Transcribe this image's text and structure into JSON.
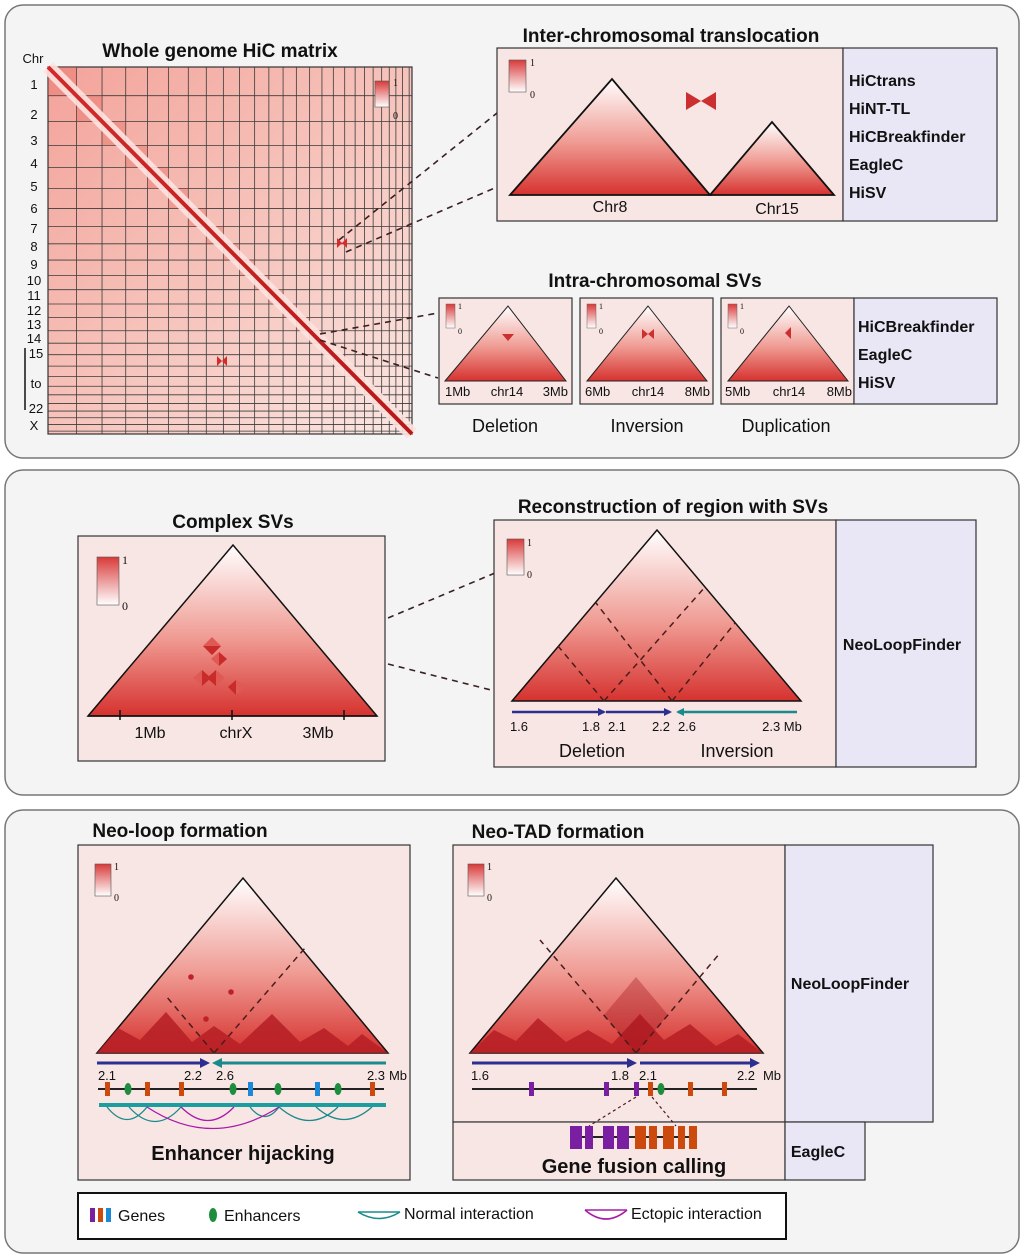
{
  "panel1": {
    "matrix_title": "Whole genome HiC matrix",
    "chr_label": "Chr",
    "chromosomes": [
      "1",
      "2",
      "3",
      "4",
      "5",
      "6",
      "7",
      "8",
      "9",
      "10",
      "11",
      "12",
      "13",
      "14",
      "15",
      "to",
      "22",
      "X"
    ],
    "scale_max": "1",
    "scale_min": "0",
    "trans_title": "Inter-chromosomal translocation",
    "trans_chr_a": "Chr8",
    "trans_chr_b": "Chr15",
    "trans_tools": [
      "HiCtrans",
      "HiNT-TL",
      "HiCBreakfinder",
      "EagleC",
      "HiSV"
    ],
    "intra_title": "Intra-chromosomal SVs",
    "intra_panels": [
      {
        "left": "1Mb",
        "mid": "chr14",
        "right": "3Mb",
        "caption": "Deletion"
      },
      {
        "left": "6Mb",
        "mid": "chr14",
        "right": "8Mb",
        "caption": "Inversion"
      },
      {
        "left": "5Mb",
        "mid": "chr14",
        "right": "8Mb",
        "caption": "Duplication"
      }
    ],
    "intra_tools": [
      "HiCBreakfinder",
      "EagleC",
      "HiSV"
    ]
  },
  "panel2": {
    "complex_title": "Complex SVs",
    "complex_ticks": [
      "1Mb",
      "chrX",
      "3Mb"
    ],
    "recon_title": "Reconstruction of region with SVs",
    "recon_coords": [
      "1.6",
      "1.8",
      "2.1",
      "2.2",
      "2.6",
      "2.3 Mb"
    ],
    "recon_captions": [
      "Deletion",
      "Inversion"
    ],
    "recon_tool": "NeoLoopFinder"
  },
  "panel3": {
    "neoloop_title": "Neo-loop formation",
    "neoloop_coords": [
      "2.1",
      "2.2",
      "2.6",
      "2.3",
      "Mb"
    ],
    "neoloop_caption": "Enhancer hijacking",
    "neotad_title": "Neo-TAD formation",
    "neotad_coords": [
      "1.6",
      "1.8",
      "2.1",
      "2.2",
      "Mb"
    ],
    "neotad_caption": "Gene fusion calling",
    "tool_neoloopfinder": "NeoLoopFinder",
    "tool_eaglec": "EagleC"
  },
  "legend": {
    "genes": "Genes",
    "enhancers": "Enhancers",
    "normal": "Normal interaction",
    "ectopic": "Ectopic interaction"
  },
  "colors": {
    "red": "#d93a3a",
    "pink_bg": "#f8e6e4",
    "tool_bg": "#e9e7f5",
    "arrow_blue": "#2c2f8f",
    "arrow_teal": "#1a8a8c",
    "gene_purple": "#7b1fa2",
    "gene_orange": "#cc4a0e",
    "gene_blue": "#1e88d8",
    "enh_green": "#1e8e3e",
    "ectopic": "#a81ca8"
  }
}
